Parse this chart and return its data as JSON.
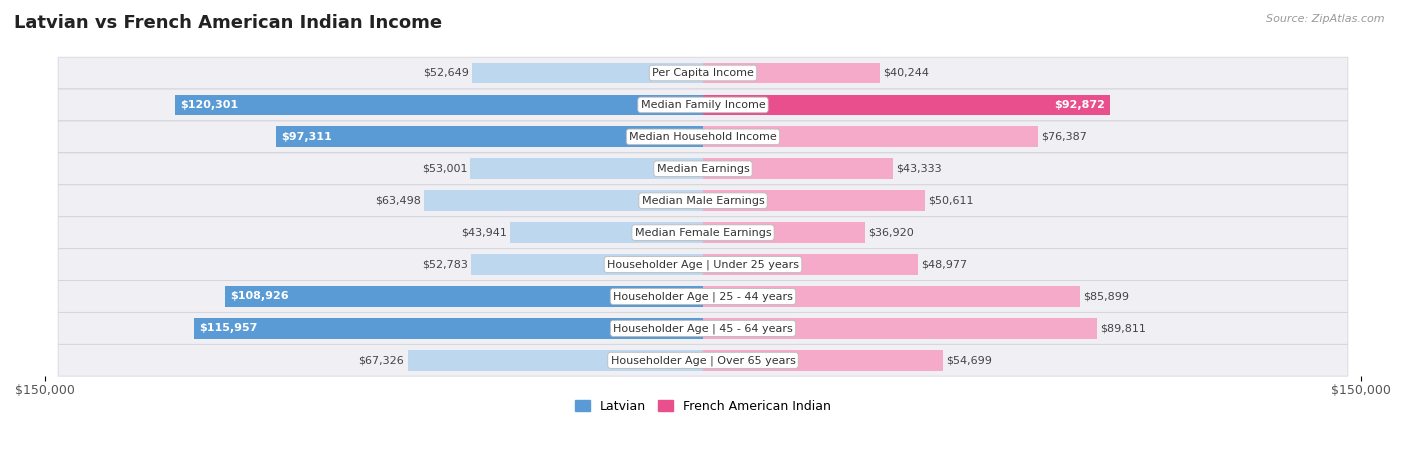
{
  "title": "Latvian vs French American Indian Income",
  "source": "Source: ZipAtlas.com",
  "categories": [
    "Per Capita Income",
    "Median Family Income",
    "Median Household Income",
    "Median Earnings",
    "Median Male Earnings",
    "Median Female Earnings",
    "Householder Age | Under 25 years",
    "Householder Age | 25 - 44 years",
    "Householder Age | 45 - 64 years",
    "Householder Age | Over 65 years"
  ],
  "latvian_values": [
    52649,
    120301,
    97311,
    53001,
    63498,
    43941,
    52783,
    108926,
    115957,
    67326
  ],
  "french_values": [
    40244,
    92872,
    76387,
    43333,
    50611,
    36920,
    48977,
    85899,
    89811,
    54699
  ],
  "latvian_labels": [
    "$52,649",
    "$120,301",
    "$97,311",
    "$53,001",
    "$63,498",
    "$43,941",
    "$52,783",
    "$108,926",
    "$115,957",
    "$67,326"
  ],
  "french_labels": [
    "$40,244",
    "$92,872",
    "$76,387",
    "$43,333",
    "$50,611",
    "$36,920",
    "$48,977",
    "$85,899",
    "$89,811",
    "$54,699"
  ],
  "max_value": 150000,
  "latvian_color_strong": "#5b9bd5",
  "latvian_color_light": "#bdd7ee",
  "french_color_strong": "#e84f8c",
  "french_color_light": "#f4aac8",
  "row_bg": "#f0f0f4",
  "row_border": "#d0d0d8",
  "label_threshold_lv": 90000,
  "label_threshold_fr": 90000,
  "title_fontsize": 13,
  "value_fontsize": 8,
  "cat_fontsize": 8,
  "axis_label": "$150,000",
  "legend_latvian": "Latvian",
  "legend_french": "French American Indian",
  "bar_height": 0.65
}
